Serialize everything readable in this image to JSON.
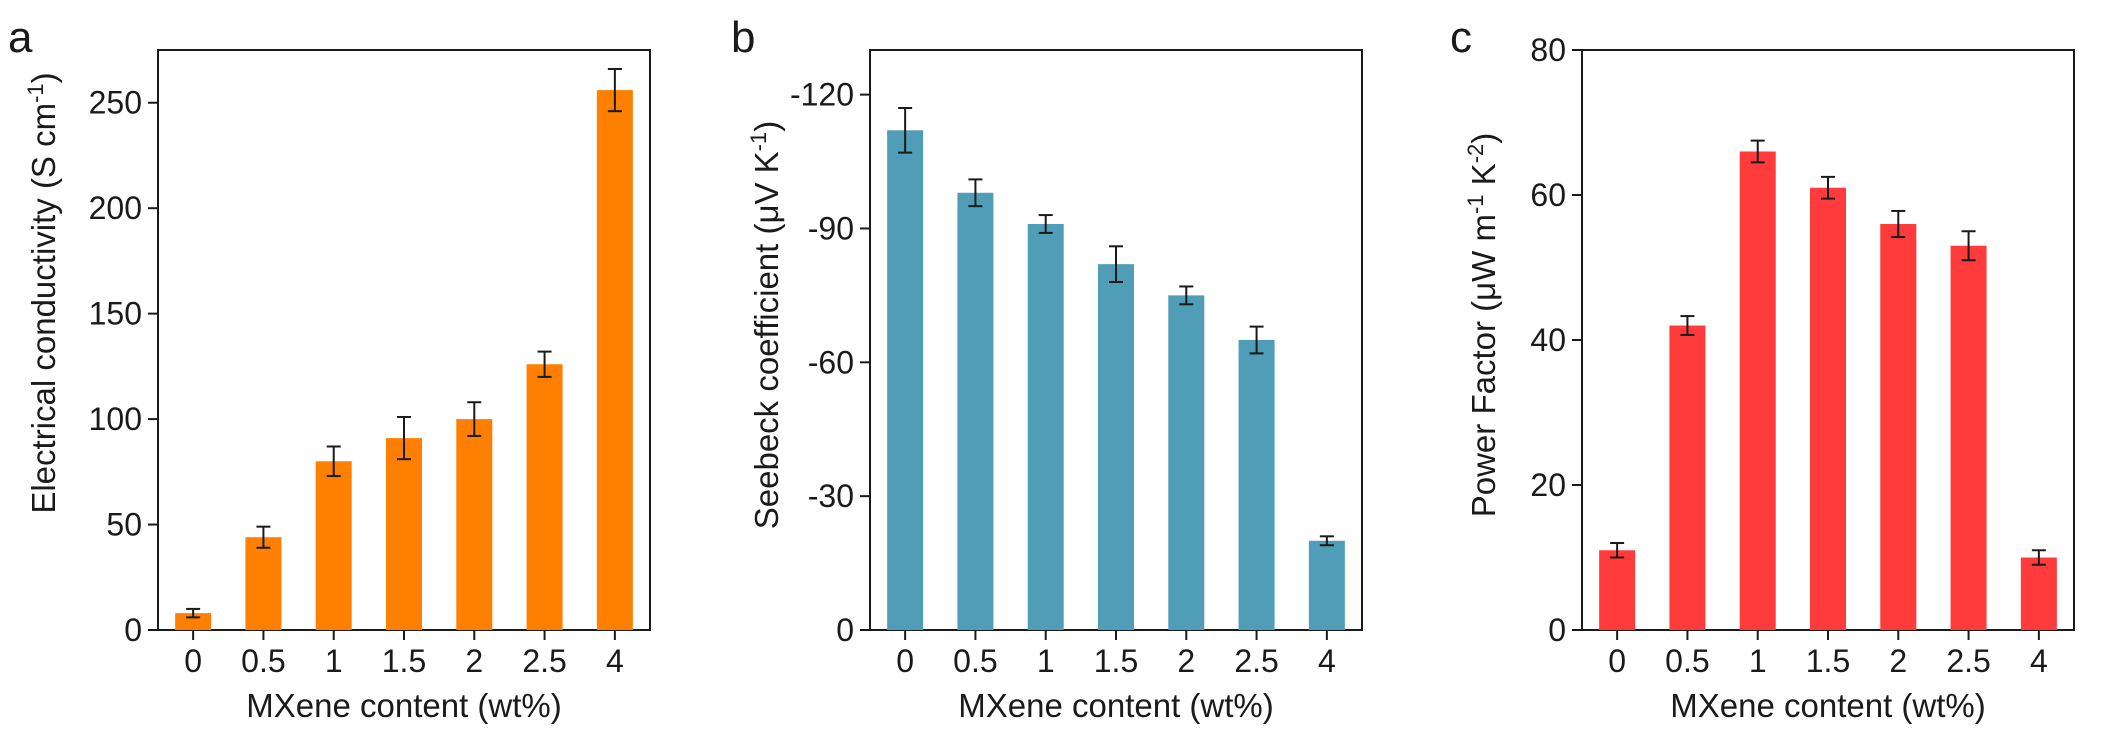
{
  "chart_data": [
    {
      "panel_label": "a",
      "type": "bar",
      "categories": [
        "0",
        "0.5",
        "1",
        "1.5",
        "2",
        "2.5",
        "4"
      ],
      "values": [
        8,
        44,
        80,
        91,
        100,
        126,
        256
      ],
      "errors": [
        2,
        5,
        7,
        10,
        8,
        6,
        10
      ],
      "ylim": [
        0,
        275
      ],
      "yticks": [
        0,
        50,
        100,
        150,
        200,
        250
      ],
      "ytick_labels": [
        "0",
        "50",
        "100",
        "150",
        "200",
        "250"
      ],
      "ylabel_main": "Electrical conductivity (S cm",
      "ylabel_sup": "-1",
      "ylabel_tail": ")",
      "xlabel": "MXene content (wt%)",
      "color": "#ff8000",
      "grid": false
    },
    {
      "panel_label": "b",
      "type": "bar",
      "categories": [
        "0",
        "0.5",
        "1",
        "1.5",
        "2",
        "2.5",
        "4"
      ],
      "values": [
        -112,
        -98,
        -91,
        -82,
        -75,
        -65,
        -20
      ],
      "errors": [
        5,
        3,
        2,
        4,
        2,
        3,
        1
      ],
      "ylim": [
        0,
        -130
      ],
      "yticks": [
        0,
        -30,
        -60,
        -90,
        -120
      ],
      "ytick_labels": [
        "0",
        "-30",
        "-60",
        "-90",
        "-120"
      ],
      "ylabel_main": "Seebeck coefficient (μV K",
      "ylabel_sup": "-1",
      "ylabel_tail": ")",
      "xlabel": "MXene content (wt%)",
      "color": "#4f9db7",
      "grid": false
    },
    {
      "panel_label": "c",
      "type": "bar",
      "categories": [
        "0",
        "0.5",
        "1",
        "1.5",
        "2",
        "2.5",
        "4"
      ],
      "values": [
        11,
        42,
        66,
        61,
        56,
        53,
        10
      ],
      "errors": [
        1,
        1.3,
        1.5,
        1.5,
        1.8,
        2,
        1
      ],
      "ylim": [
        0,
        80
      ],
      "yticks": [
        0,
        20,
        40,
        60,
        80
      ],
      "ytick_labels": [
        "0",
        "20",
        "40",
        "60",
        "80"
      ],
      "ylabel_main": "Power Factor (μW m",
      "ylabel_sup": "-1",
      "ylabel_mid": " K",
      "ylabel_sup2": "-2",
      "ylabel_tail": ")",
      "xlabel": "MXene content (wt%)",
      "color": "#ff3b3b",
      "grid": false
    }
  ]
}
